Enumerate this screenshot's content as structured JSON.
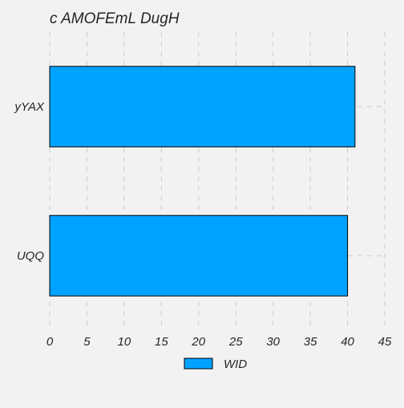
{
  "chart_data": {
    "type": "bar",
    "orientation": "horizontal",
    "title": "c AMOFEmL DugH",
    "xlabel": "",
    "ylabel": "",
    "categories": [
      "UQQ",
      "yYAX"
    ],
    "series": [
      {
        "name": "WID",
        "values": [
          40,
          41
        ]
      }
    ],
    "xlim": [
      0,
      45
    ],
    "xticks": [
      "0",
      "5",
      "10",
      "15",
      "20",
      "25",
      "30",
      "35",
      "40",
      "45"
    ],
    "grid": true,
    "legend_position": "bottom-center",
    "colors": {
      "background": "#f2f2f2",
      "bar_fill": "#00a2ff",
      "bar_stroke": "#000000",
      "grid": "#cbcbcb",
      "text": "#262626"
    }
  }
}
